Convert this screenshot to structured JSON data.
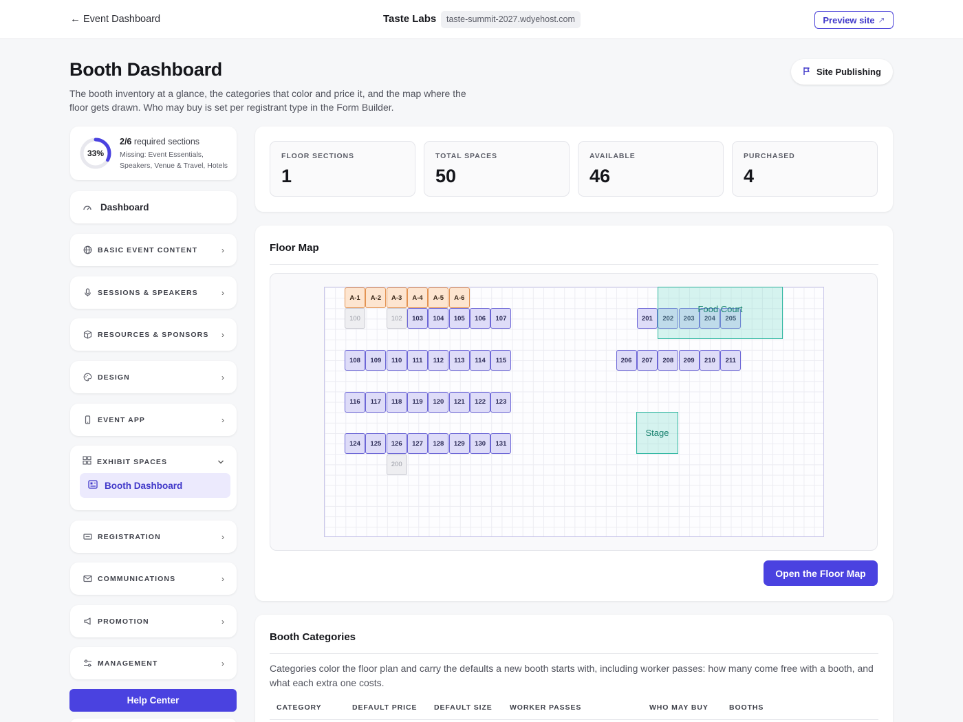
{
  "topbar": {
    "back_label": "Event Dashboard",
    "org_name": "Taste Labs",
    "domain": "taste-summit-2027.wdyehost.com",
    "preview_label": "Preview site"
  },
  "header": {
    "title": "Booth Dashboard",
    "description": "The booth inventory at a glance, the categories that color and price it, and the map where the floor gets drawn. Who may buy is set per registrant type in the Form Builder.",
    "publish_label": "Site Publishing"
  },
  "progress": {
    "percent_label": "33%",
    "percent": 33,
    "count": "2/6",
    "title_rest": " required sections",
    "missing": "Missing: Event Essentials, Speakers, Venue & Travel, Hotels"
  },
  "nav": {
    "dashboard": "Dashboard",
    "basic_event_content": "BASIC EVENT CONTENT",
    "sessions_speakers": "SESSIONS & SPEAKERS",
    "resources_sponsors": "RESOURCES & SPONSORS",
    "design": "DESIGN",
    "event_app": "EVENT APP",
    "exhibit_spaces": "EXHIBIT SPACES",
    "booth_dashboard": "Booth Dashboard",
    "registration": "REGISTRATION",
    "communications": "COMMUNICATIONS",
    "promotion": "PROMOTION",
    "management": "MANAGEMENT",
    "help_center": "Help Center"
  },
  "stats": [
    {
      "label": "FLOOR SECTIONS",
      "value": "1"
    },
    {
      "label": "TOTAL SPACES",
      "value": "50"
    },
    {
      "label": "AVAILABLE",
      "value": "46"
    },
    {
      "label": "PURCHASED",
      "value": "4"
    }
  ],
  "floor_map": {
    "title": "Floor Map",
    "open_label": "Open the Floor Map",
    "zones": {
      "food_court": "Food Court",
      "stage": "Stage"
    },
    "orange_booths": [
      "A-1",
      "A-2",
      "A-3",
      "A-4",
      "A-5",
      "A-6"
    ],
    "row1": [
      "100",
      "102",
      "103",
      "104",
      "105",
      "106",
      "107"
    ],
    "row1_right": [
      "201",
      "202",
      "203",
      "204",
      "205"
    ],
    "row2": [
      "108",
      "109",
      "110",
      "111",
      "112",
      "113",
      "114",
      "115"
    ],
    "row2_right": [
      "206",
      "207",
      "208",
      "209",
      "210",
      "211"
    ],
    "row3": [
      "116",
      "117",
      "118",
      "119",
      "120",
      "121",
      "122",
      "123"
    ],
    "row4": [
      "124",
      "125",
      "126",
      "127",
      "128",
      "129",
      "130",
      "131"
    ],
    "row5": [
      "200"
    ]
  },
  "categories": {
    "title": "Booth Categories",
    "description": "Categories color the floor plan and carry the defaults a new booth starts with, including worker passes: how many come free with a booth, and what each extra one costs.",
    "columns": [
      "CATEGORY",
      "DEFAULT PRICE",
      "DEFAULT SIZE",
      "WORKER PASSES",
      "WHO MAY BUY",
      "BOOTHS"
    ]
  },
  "colors": {
    "accent": "#4a42e0",
    "booth": "#dedcf8",
    "booth_orange": "#fde5d0",
    "zone": "#33b9a3"
  }
}
